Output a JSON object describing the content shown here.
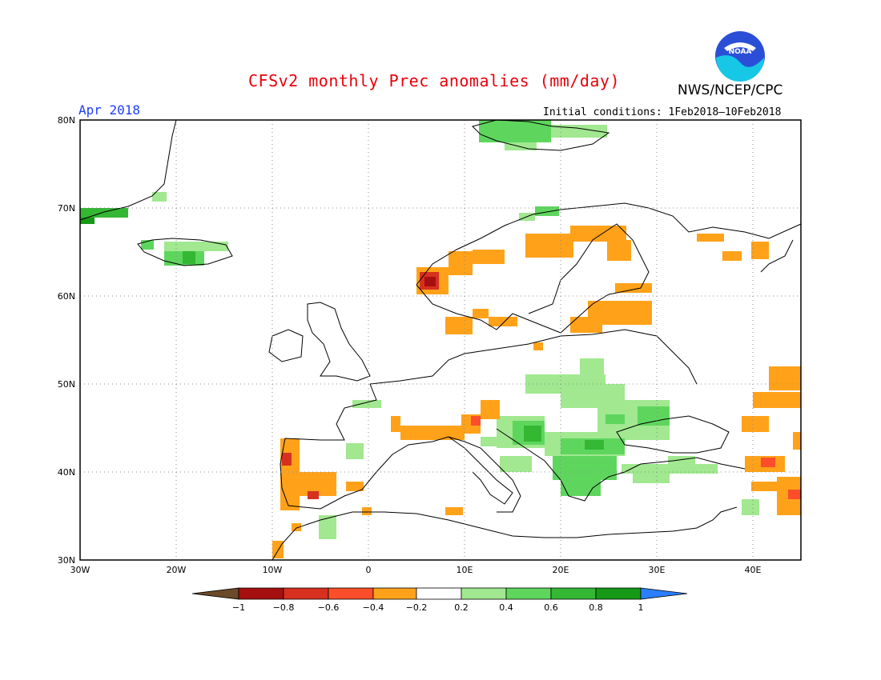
{
  "header": {
    "title": "CFSv2 monthly Prec anomalies (mm/day)",
    "agency": "NWS/NCEP/CPC",
    "valid_month": "Apr 2018",
    "initial_conditions": "Initial conditions: 1Feb2018–10Feb2018",
    "logo_text": "NOAA"
  },
  "map": {
    "lat_labels": [
      "80N",
      "70N",
      "60N",
      "50N",
      "40N",
      "30N"
    ],
    "lon_labels": [
      "30W",
      "20W",
      "10W",
      "0",
      "10E",
      "20E",
      "30E",
      "40E"
    ],
    "grid": true,
    "extent": {
      "lon_min": -30,
      "lon_max": 45,
      "lat_min": 30,
      "lat_max": 80
    }
  },
  "colorbar": {
    "labels": [
      "−1",
      "−0.8",
      "−0.6",
      "−0.4",
      "−0.2",
      "0.2",
      "0.4",
      "0.6",
      "0.8",
      "1"
    ],
    "colors": [
      "#6b4a2a",
      "#a50f0f",
      "#d7301f",
      "#fc4e2a",
      "#ffa21a",
      "#ffffff",
      "#a1e890",
      "#5ed65e",
      "#34b834",
      "#169916",
      "#2b7fff"
    ]
  },
  "anomaly_colors": {
    "neg_02_04": "#ffa21a",
    "neg_04_06": "#fc4e2a",
    "neg_06_08": "#d7301f",
    "neg_08_1": "#a50f0f",
    "pos_02_04": "#a1e890",
    "pos_04_06": "#5ed65e",
    "pos_06_08": "#34b834",
    "pos_08_1": "#169916"
  }
}
